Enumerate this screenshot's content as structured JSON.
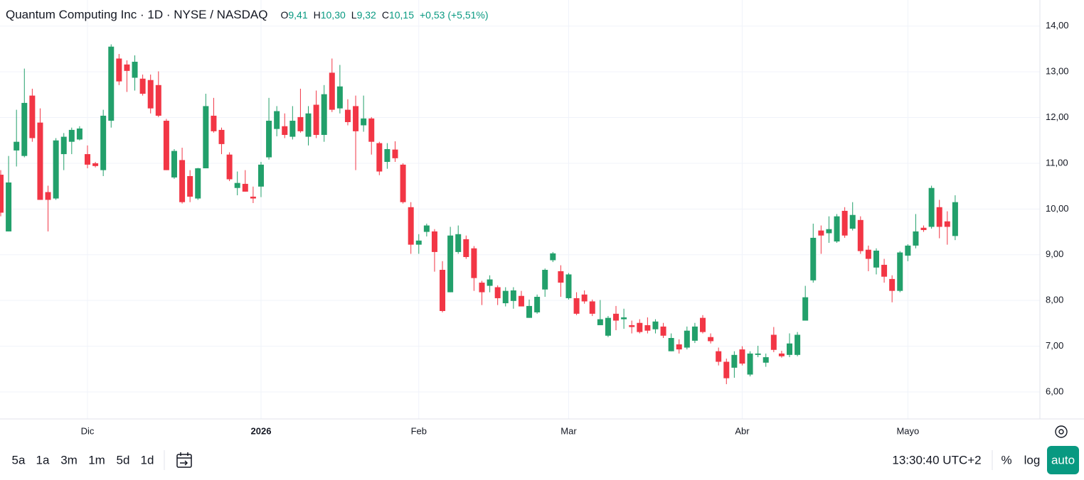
{
  "header": {
    "title": "Quantum Computing Inc · 1D · NYSE / NASDAQ",
    "ohlc": [
      {
        "key": "O",
        "value": "9,41"
      },
      {
        "key": "H",
        "value": "10,30"
      },
      {
        "key": "L",
        "value": "9,32"
      },
      {
        "key": "C",
        "value": "10,15"
      }
    ],
    "change": "+0,53 (+5,51%)"
  },
  "toolbar": {
    "ranges": [
      "5a",
      "1a",
      "3m",
      "1m",
      "5d",
      "1d"
    ],
    "time": "13:30:40 UTC+2",
    "percent": "%",
    "log": "log",
    "auto": "auto"
  },
  "chart_data": {
    "type": "candlestick",
    "up_color": "#22a06b",
    "down_color": "#f23645",
    "grid": true,
    "log_scale": false,
    "ylim": [
      5.41,
      14.57
    ],
    "yticks": [
      {
        "value": 6,
        "label": "6,00"
      },
      {
        "value": 7,
        "label": "7,00"
      },
      {
        "value": 8,
        "label": "8,00"
      },
      {
        "value": 9,
        "label": "9,00"
      },
      {
        "value": 10,
        "label": "10,00"
      },
      {
        "value": 11,
        "label": "11,00"
      },
      {
        "value": 12,
        "label": "12,00"
      },
      {
        "value": 13,
        "label": "13,00"
      },
      {
        "value": 14,
        "label": "14,00"
      }
    ],
    "categories": [
      null,
      null,
      null,
      null,
      null,
      null,
      null,
      null,
      null,
      null,
      null,
      "Dic",
      null,
      null,
      null,
      null,
      null,
      null,
      null,
      null,
      null,
      null,
      null,
      null,
      null,
      null,
      null,
      null,
      null,
      null,
      null,
      null,
      null,
      "2026",
      null,
      null,
      null,
      null,
      null,
      null,
      null,
      null,
      null,
      null,
      null,
      null,
      null,
      null,
      null,
      null,
      null,
      null,
      null,
      "Feb",
      null,
      null,
      null,
      null,
      null,
      null,
      null,
      null,
      null,
      null,
      null,
      null,
      null,
      null,
      null,
      null,
      null,
      null,
      "Mar",
      null,
      null,
      null,
      null,
      null,
      null,
      null,
      null,
      null,
      null,
      null,
      null,
      null,
      null,
      null,
      null,
      null,
      null,
      null,
      null,
      null,
      "Abr",
      null,
      null,
      null,
      null,
      null,
      null,
      null,
      null,
      null,
      null,
      null,
      null,
      null,
      null,
      null,
      null,
      null,
      null,
      null,
      null,
      "Mayo",
      null,
      null,
      null,
      null,
      null,
      null
    ],
    "open": [
      10.75,
      9.51,
      11.28,
      11.16,
      12.48,
      11.89,
      10.37,
      10.23,
      11.2,
      11.47,
      11.52,
      11.2,
      11.0,
      10.85,
      11.93,
      13.29,
      13.16,
      12.87,
      12.85,
      12.82,
      12.71,
      11.93,
      10.69,
      11.07,
      10.72,
      10.23,
      10.89,
      12.04,
      11.73,
      11.19,
      10.46,
      10.55,
      10.27,
      10.49,
      11.13,
      11.75,
      11.81,
      11.58,
      12.01,
      11.58,
      12.28,
      11.62,
      12.98,
      12.2,
      12.17,
      12.25,
      11.83,
      11.98,
      11.44,
      11.03,
      11.3,
      10.97,
      10.04,
      9.22,
      9.5,
      9.51,
      8.67,
      8.18,
      9.06,
      9.34,
      9.14,
      8.39,
      8.32,
      8.29,
      7.94,
      7.99,
      8.1,
      7.62,
      7.74,
      8.24,
      8.88,
      8.64,
      8.05,
      8.05,
      8.13,
      7.98,
      7.46,
      7.23,
      7.71,
      7.59,
      7.46,
      7.51,
      7.46,
      7.37,
      7.43,
      6.89,
      7.04,
      6.97,
      7.12,
      7.62,
      7.2,
      6.89,
      6.66,
      6.53,
      6.93,
      6.38,
      6.81,
      6.64,
      7.25,
      6.84,
      6.81,
      6.81,
      7.56,
      8.44,
      9.53,
      9.47,
      9.29,
      9.96,
      9.57,
      9.76,
      9.11,
      8.72,
      8.78,
      8.47,
      8.21,
      8.98,
      9.2,
      9.59,
      9.61,
      10.04,
      9.73,
      9.41
    ],
    "high": [
      10.85,
      11.16,
      12.17,
      13.07,
      12.63,
      12.2,
      10.51,
      11.55,
      11.66,
      11.78,
      11.81,
      11.39,
      11.03,
      12.17,
      13.6,
      13.39,
      13.25,
      13.36,
      12.94,
      12.94,
      13.01,
      11.97,
      11.31,
      11.34,
      10.85,
      10.9,
      12.52,
      12.43,
      11.78,
      11.24,
      10.82,
      10.85,
      10.49,
      11.03,
      12.43,
      12.25,
      12.09,
      12.25,
      12.63,
      12.25,
      12.59,
      12.71,
      13.29,
      13.15,
      12.4,
      12.48,
      12.48,
      12.01,
      11.47,
      11.44,
      11.48,
      11.0,
      10.15,
      9.45,
      9.68,
      9.56,
      8.86,
      9.61,
      9.64,
      9.42,
      9.19,
      8.43,
      8.55,
      8.33,
      8.29,
      8.29,
      8.21,
      8.02,
      8.13,
      8.7,
      9.06,
      8.77,
      8.6,
      8.18,
      8.22,
      8.02,
      8.01,
      7.66,
      7.88,
      7.82,
      7.56,
      7.59,
      7.63,
      7.59,
      7.51,
      7.28,
      7.15,
      7.43,
      7.51,
      7.68,
      7.28,
      6.97,
      6.73,
      6.89,
      7.0,
      6.89,
      7.01,
      6.84,
      7.42,
      6.9,
      7.28,
      7.31,
      8.32,
      9.68,
      9.64,
      9.84,
      9.89,
      10.04,
      10.15,
      9.84,
      9.2,
      9.14,
      8.91,
      8.55,
      9.08,
      9.23,
      9.89,
      9.64,
      10.51,
      10.2,
      9.95,
      10.3
    ],
    "low": [
      9.84,
      9.51,
      10.93,
      11.13,
      11.47,
      10.2,
      9.51,
      10.2,
      10.85,
      11.2,
      11.5,
      10.89,
      10.91,
      10.72,
      11.78,
      12.71,
      12.56,
      12.59,
      12.48,
      12.09,
      12.01,
      10.85,
      10.66,
      10.12,
      10.15,
      10.2,
      10.89,
      11.67,
      11.2,
      10.61,
      10.3,
      10.38,
      10.13,
      10.26,
      11.08,
      11.59,
      11.55,
      11.52,
      11.67,
      11.39,
      11.55,
      11.47,
      12.12,
      12.09,
      11.83,
      10.85,
      11.69,
      11.19,
      10.74,
      10.88,
      11.03,
      10.12,
      9.02,
      9.02,
      9.4,
      8.63,
      7.74,
      8.18,
      9.02,
      8.91,
      8.21,
      7.9,
      8.18,
      7.9,
      7.87,
      7.82,
      7.87,
      7.62,
      7.71,
      8.08,
      8.84,
      8.08,
      8.02,
      7.68,
      7.93,
      7.66,
      7.46,
      7.2,
      7.35,
      7.38,
      7.28,
      7.28,
      7.28,
      7.28,
      7.18,
      6.89,
      6.84,
      6.93,
      7.07,
      7.28,
      7.06,
      6.58,
      6.17,
      6.31,
      6.58,
      6.34,
      6.76,
      6.55,
      6.87,
      6.75,
      6.76,
      6.78,
      7.56,
      8.39,
      9.02,
      9.26,
      9.26,
      9.37,
      9.53,
      9.02,
      8.64,
      8.57,
      8.39,
      7.96,
      8.18,
      8.86,
      9.14,
      9.5,
      9.57,
      9.36,
      9.22,
      9.32
    ],
    "close": [
      9.92,
      10.58,
      11.47,
      12.32,
      11.55,
      10.2,
      10.2,
      11.5,
      11.58,
      11.73,
      11.76,
      10.97,
      10.94,
      12.04,
      13.55,
      12.79,
      13.02,
      13.22,
      12.52,
      12.2,
      12.04,
      10.85,
      11.27,
      10.15,
      10.27,
      10.89,
      12.25,
      11.7,
      11.42,
      10.65,
      10.57,
      10.38,
      10.23,
      10.97,
      11.93,
      12.14,
      11.62,
      11.93,
      11.7,
      12.09,
      11.62,
      12.51,
      12.17,
      12.68,
      11.9,
      11.7,
      11.98,
      11.47,
      10.82,
      11.31,
      11.11,
      10.15,
      9.22,
      9.31,
      9.64,
      9.06,
      7.77,
      9.42,
      9.45,
      8.95,
      8.49,
      8.18,
      8.46,
      8.05,
      8.21,
      8.22,
      7.87,
      7.88,
      8.08,
      8.67,
      9.03,
      8.39,
      8.57,
      7.71,
      7.98,
      7.71,
      7.59,
      7.62,
      7.56,
      7.63,
      7.42,
      7.31,
      7.34,
      7.54,
      7.23,
      7.18,
      6.93,
      7.34,
      7.43,
      7.31,
      7.11,
      6.66,
      6.3,
      6.81,
      6.62,
      6.84,
      6.84,
      6.76,
      6.92,
      6.78,
      7.06,
      7.25,
      8.07,
      9.37,
      9.42,
      9.56,
      9.84,
      9.42,
      9.87,
      9.08,
      8.91,
      9.09,
      8.52,
      8.21,
      9.05,
      9.2,
      9.51,
      9.54,
      10.46,
      9.61,
      9.61,
      10.15
    ]
  }
}
